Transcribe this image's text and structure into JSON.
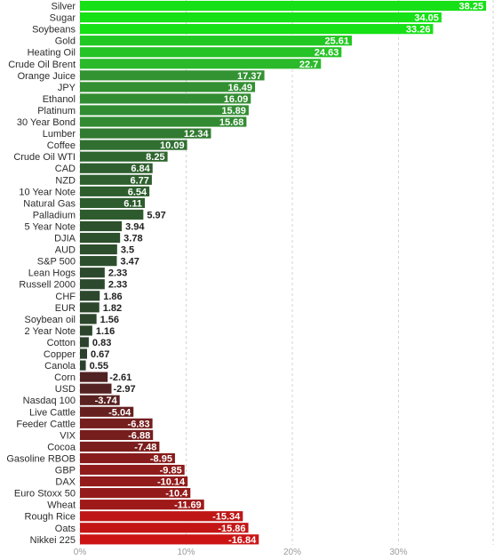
{
  "chart_data": {
    "type": "bar",
    "orientation": "horizontal",
    "title": "",
    "xlabel": "",
    "ylabel": "",
    "grid": true,
    "xlim": [
      0,
      38.25
    ],
    "x_ticks": [
      "0%",
      "10%",
      "20%",
      "30%"
    ],
    "x_tick_values": [
      0,
      10,
      20,
      30
    ],
    "colors": {
      "positive_strong": "#16e016",
      "positive_mid": "#34a534",
      "positive_weak": "#2c3e2c",
      "negative_weak": "#3a2525",
      "negative_strong": "#cc1414"
    },
    "categories": [
      "Silver",
      "Sugar",
      "Soybeans",
      "Gold",
      "Heating Oil",
      "Crude Oil Brent",
      "Orange Juice",
      "JPY",
      "Ethanol",
      "Platinum",
      "30 Year Bond",
      "Lumber",
      "Coffee",
      "Crude Oil WTI",
      "CAD",
      "NZD",
      "10 Year Note",
      "Natural Gas",
      "Palladium",
      "5 Year Note",
      "DJIA",
      "AUD",
      "S&P 500",
      "Lean Hogs",
      "Russell 2000",
      "CHF",
      "EUR",
      "Soybean oil",
      "2 Year Note",
      "Cotton",
      "Copper",
      "Canola",
      "Corn",
      "USD",
      "Nasdaq 100",
      "Live Cattle",
      "Feeder Cattle",
      "VIX",
      "Cocoa",
      "Gasoline RBOB",
      "GBP",
      "DAX",
      "Euro Stoxx 50",
      "Wheat",
      "Rough Rice",
      "Oats",
      "Nikkei 225"
    ],
    "values": [
      38.25,
      34.05,
      33.26,
      25.61,
      24.63,
      22.7,
      17.37,
      16.49,
      16.09,
      15.89,
      15.68,
      12.34,
      10.09,
      8.25,
      6.84,
      6.77,
      6.54,
      6.11,
      5.97,
      3.94,
      3.78,
      3.5,
      3.47,
      2.33,
      2.33,
      1.86,
      1.82,
      1.56,
      1.16,
      0.83,
      0.67,
      0.55,
      -2.61,
      -2.97,
      -3.74,
      -5.04,
      -6.83,
      -6.88,
      -7.48,
      -8.95,
      -9.85,
      -10.14,
      -10.4,
      -11.69,
      -15.34,
      -15.86,
      -16.84
    ],
    "value_labels": [
      "38.25",
      "34.05",
      "33.26",
      "25.61",
      "24.63",
      "22.7",
      "17.37",
      "16.49",
      "16.09",
      "15.89",
      "15.68",
      "12.34",
      "10.09",
      "8.25",
      "6.84",
      "6.77",
      "6.54",
      "6.11",
      "5.97",
      "3.94",
      "3.78",
      "3.5",
      "3.47",
      "2.33",
      "2.33",
      "1.86",
      "1.82",
      "1.56",
      "1.16",
      "0.83",
      "0.67",
      "0.55",
      "-2.61",
      "-2.97",
      "-3.74",
      "-5.04",
      "-6.83",
      "-6.88",
      "-7.48",
      "-8.95",
      "-9.85",
      "-10.14",
      "-10.4",
      "-11.69",
      "-15.34",
      "-15.86",
      "-16.84"
    ]
  }
}
